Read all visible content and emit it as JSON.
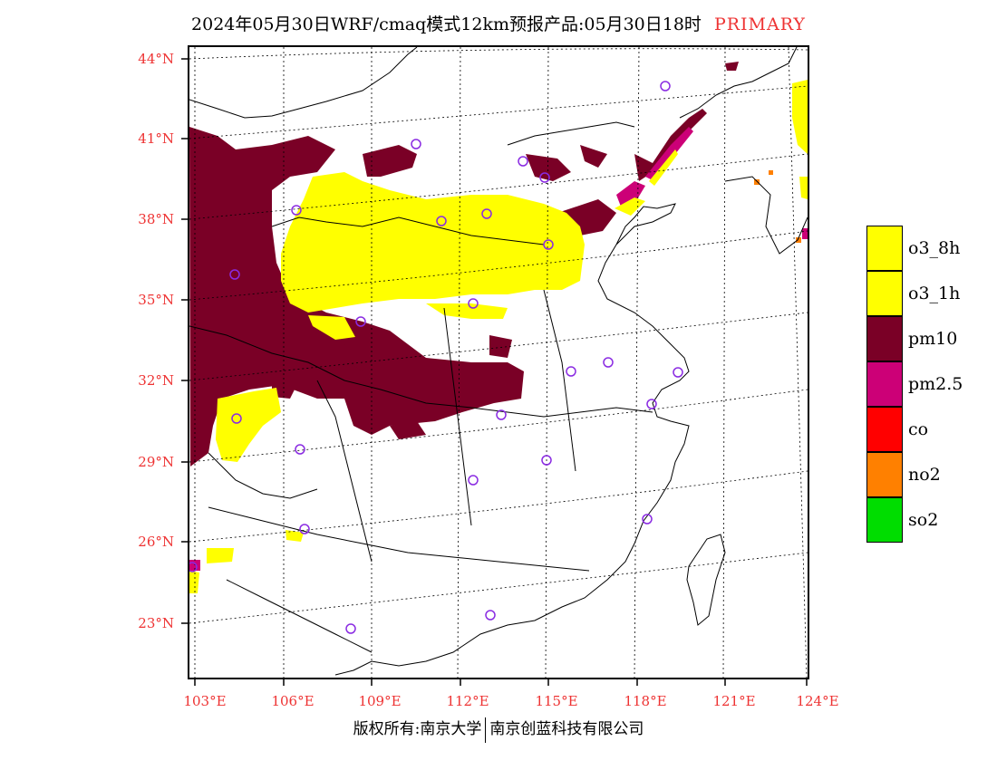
{
  "title": {
    "main": "2024年05月30日WRF/cmaq模式12km预报产品:05月30日18时",
    "tag": "PRIMARY"
  },
  "axes": {
    "lat_labels": [
      "44°N",
      "41°N",
      "38°N",
      "35°N",
      "32°N",
      "29°N",
      "26°N",
      "23°N"
    ],
    "lon_labels": [
      "103°E",
      "106°E",
      "109°E",
      "112°E",
      "115°E",
      "118°E",
      "121°E",
      "124°E"
    ],
    "label_color": "#e33333"
  },
  "legend": {
    "items": [
      {
        "label": "o3_8h",
        "color": "#ffff00"
      },
      {
        "label": "o3_1h",
        "color": "#ffff00"
      },
      {
        "label": "pm10",
        "color": "#7a0026"
      },
      {
        "label": "pm2.5",
        "color": "#cc0077"
      },
      {
        "label": "co",
        "color": "#ff0000"
      },
      {
        "label": "no2",
        "color": "#ff8000"
      },
      {
        "label": "so2",
        "color": "#00dd00"
      }
    ]
  },
  "footer": {
    "left": "版权所有:南京大学",
    "right": "南京创蓝科技有限公司"
  }
}
